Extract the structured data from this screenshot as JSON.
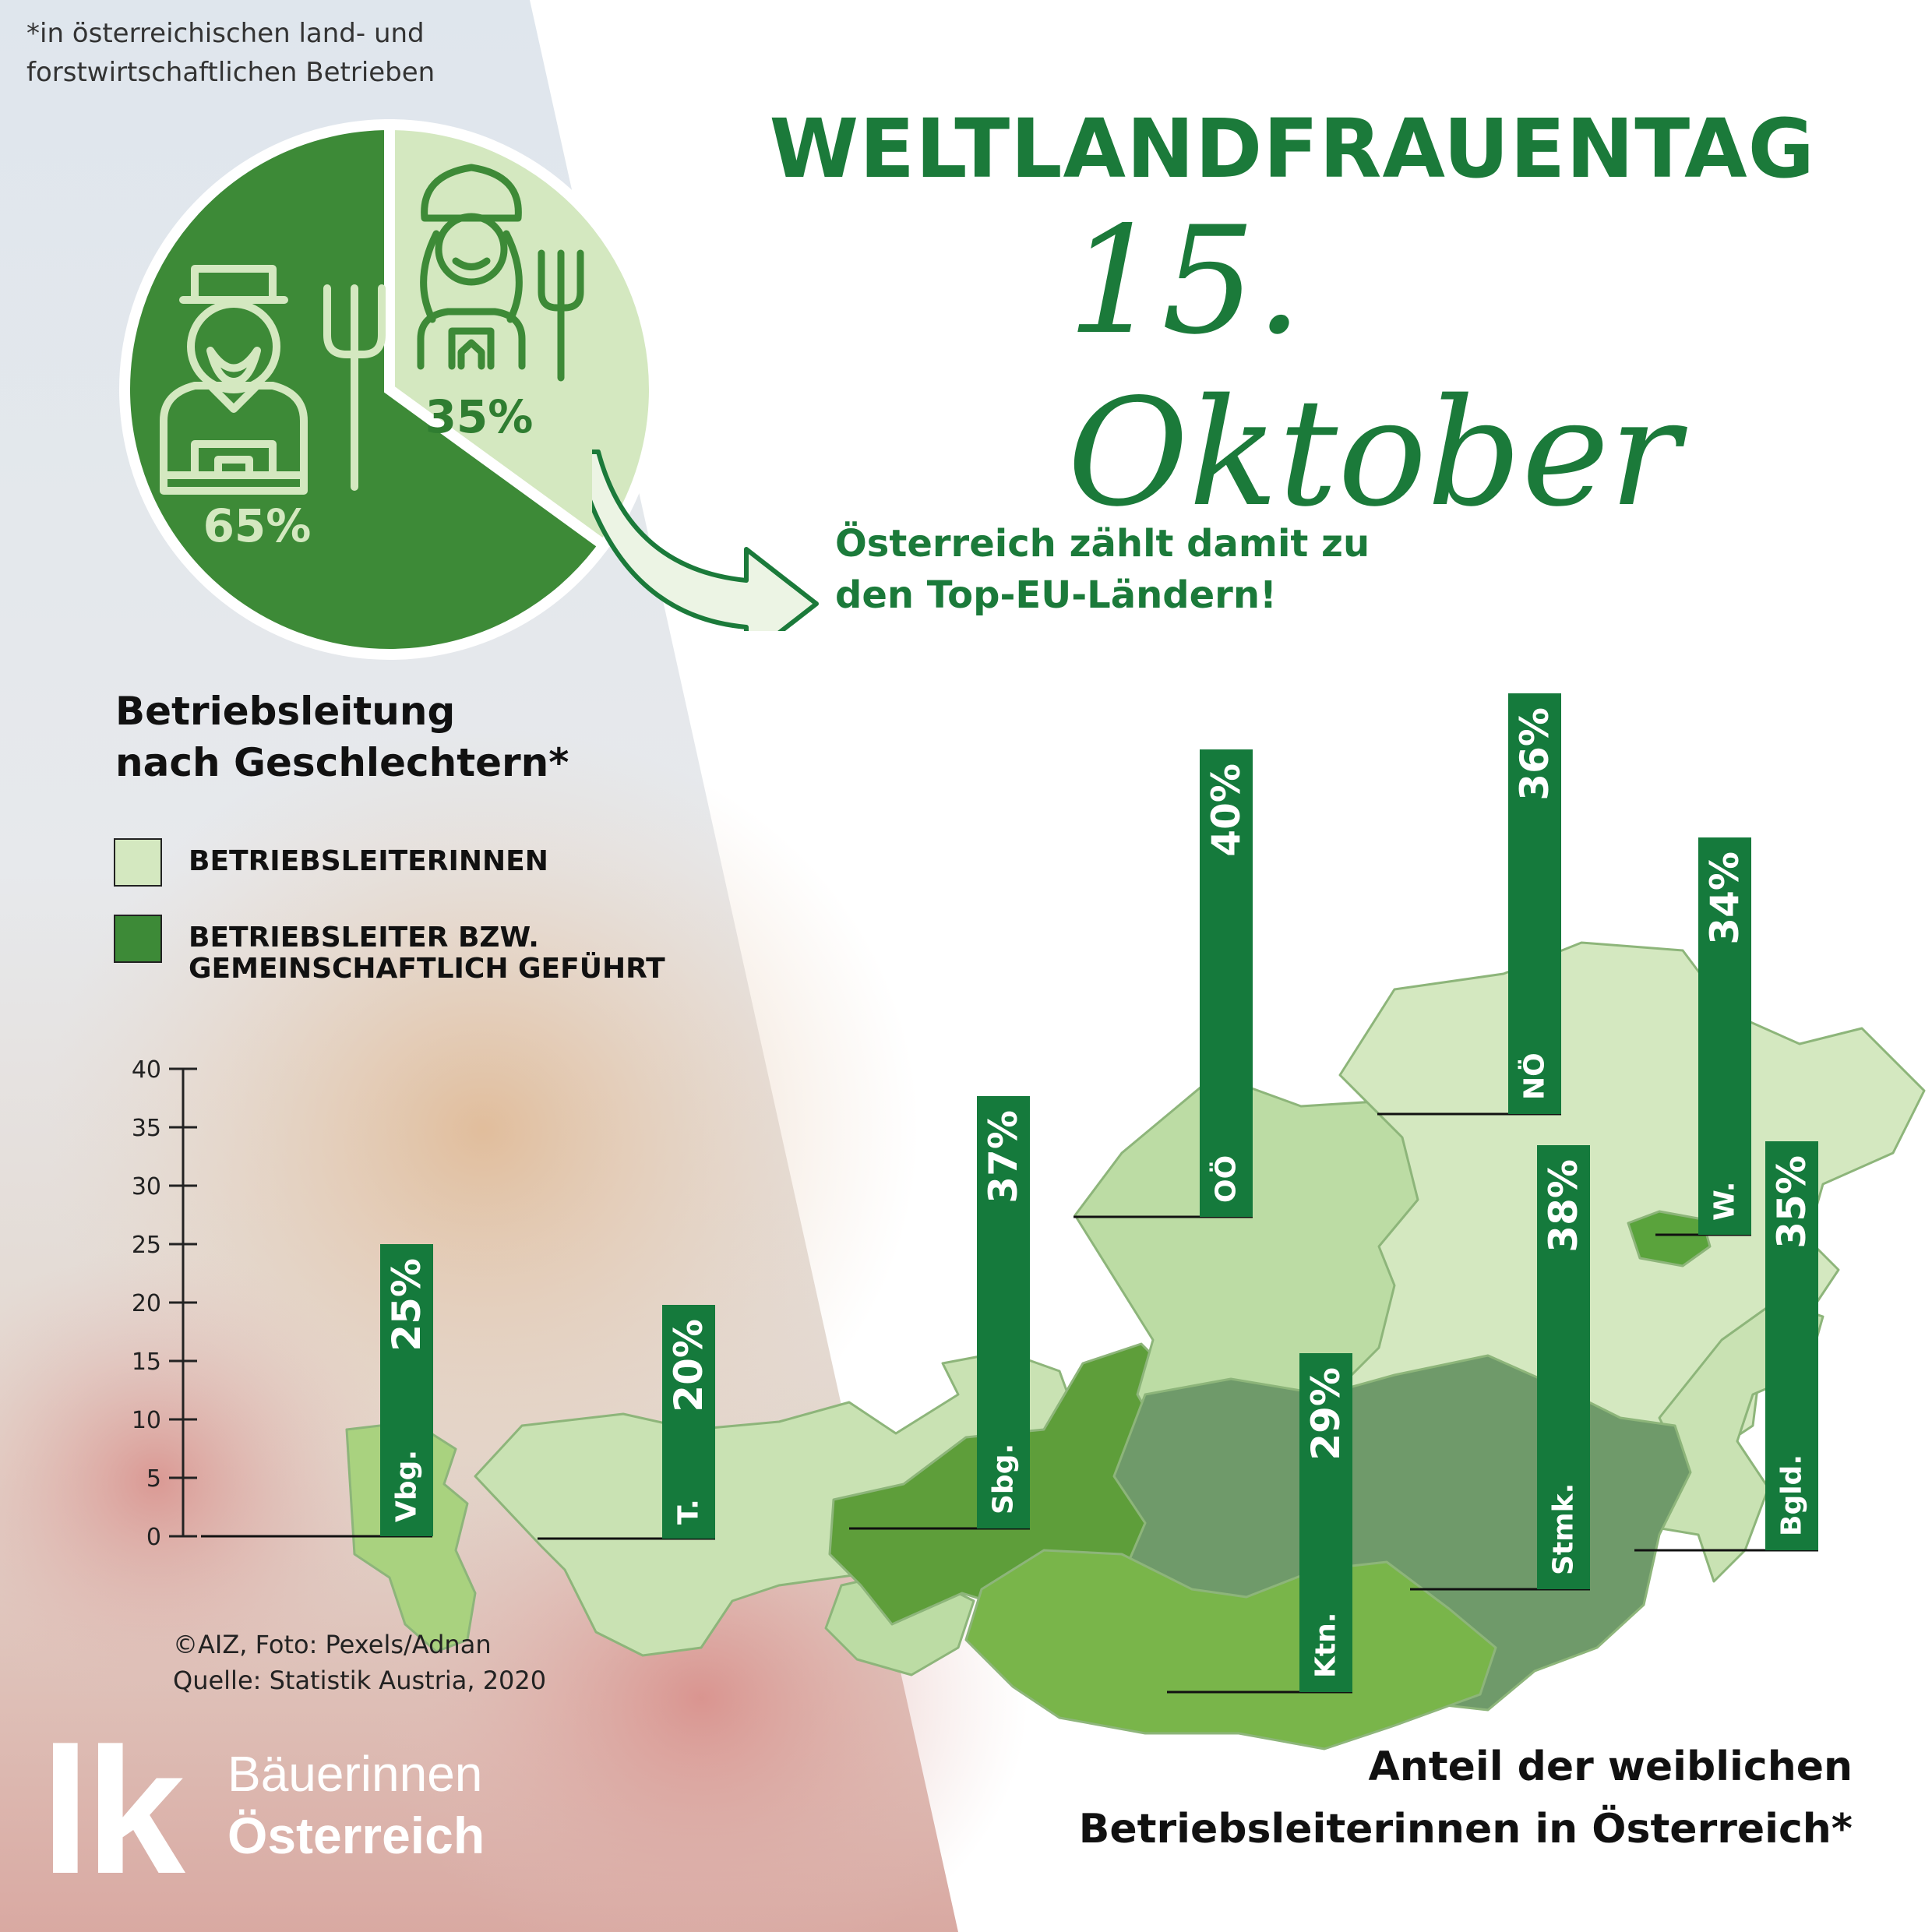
{
  "footnote": "*in österreichischen land- und forstwirtschaftlichen Betrieben",
  "title": "WELTLANDFRAUENTAG",
  "date_script": "15. Oktober",
  "note_line1": "Österreich zählt damit zu",
  "note_line2": "den Top-EU-Ländern!",
  "chart_heading_line1": "Betriebsleitung",
  "chart_heading_line2": "nach Geschlechtern*",
  "legend": {
    "female": "BETRIEBSLEITERINNEN",
    "male_line1": "BETRIEBSLEITER BZW.",
    "male_line2": "GEMEINSCHAFTLICH GEFÜHRT"
  },
  "credit_line1": "©AIZ, Foto: Pexels/Adnan",
  "credit_line2": "Quelle: Statistik Austria, 2020",
  "logo": {
    "mark": "lk",
    "line1": "Bäuerinnen",
    "line2": "Österreich"
  },
  "map_caption_line1": "Anteil der weiblichen",
  "map_caption_line2": "Betriebsleiterinnen in Österreich*",
  "icons": [
    "female-farmer-icon",
    "male-farmer-icon",
    "pitchfork-icon",
    "curved-arrow-icon"
  ],
  "colors": {
    "brand_green": "#1b7a3a",
    "bar_green": "#157a3c",
    "pie_light": "#d4e8c0",
    "pie_dark": "#3d8a37",
    "pie_label_light": "#d4e8c0",
    "pie_label_dark": "#2f7d31"
  },
  "chart_data": [
    {
      "type": "pie",
      "series": [
        {
          "name": "BETRIEBSLEITERINNEN",
          "value": 35,
          "label": "35%"
        },
        {
          "name": "BETRIEBSLEITER BZW. GEMEINSCHAFTLICH GEFÜHRT",
          "value": 65,
          "label": "65%"
        }
      ]
    },
    {
      "type": "bar",
      "categories": [
        "Vbg.",
        "T.",
        "Sbg.",
        "OÖ",
        "Ktn.",
        "NÖ",
        "Stmk.",
        "W.",
        "Bgld."
      ],
      "values": [
        25,
        20,
        37,
        40,
        29,
        36,
        38,
        34,
        35
      ],
      "labels": [
        "25%",
        "20%",
        "37%",
        "40%",
        "29%",
        "36%",
        "38%",
        "34%",
        "35%"
      ],
      "ylim": [
        0,
        40
      ],
      "yticks": [
        "0",
        "5",
        "10",
        "15",
        "20",
        "25",
        "30",
        "35",
        "40"
      ]
    }
  ]
}
